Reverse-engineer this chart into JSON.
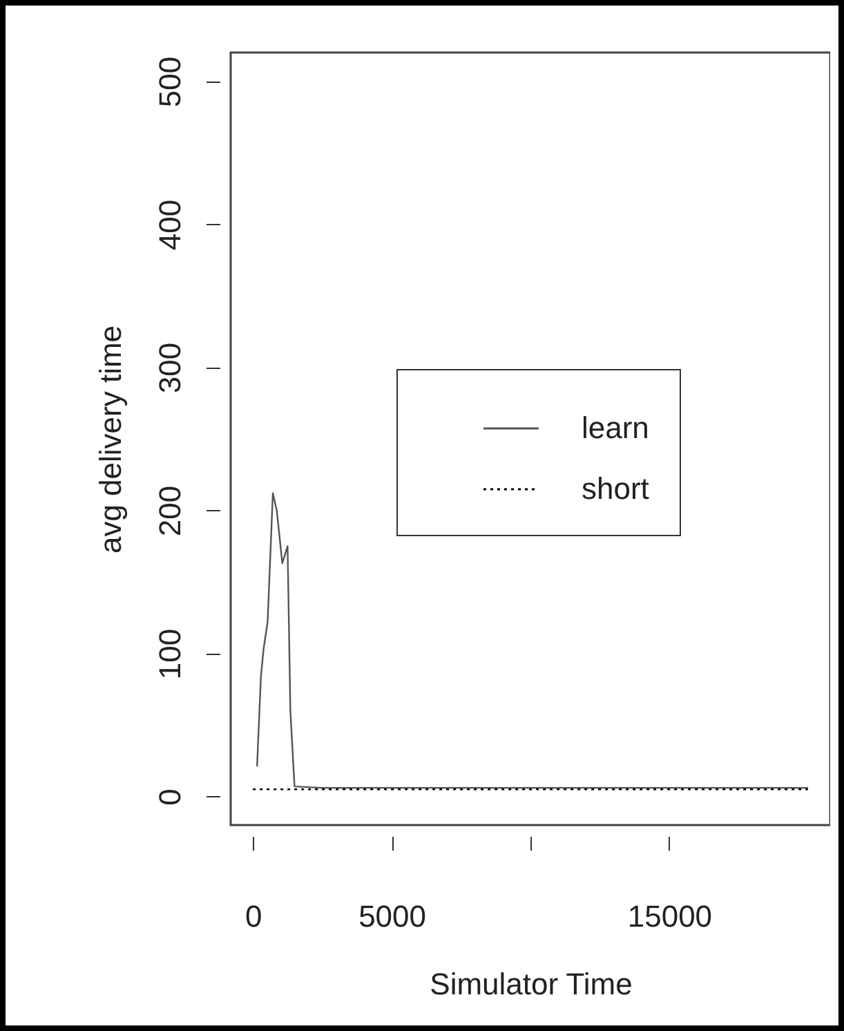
{
  "chart_data": {
    "type": "line",
    "xlabel": "Simulator Time",
    "ylabel": "avg delivery time",
    "xlim": [
      -800,
      20800
    ],
    "ylim": [
      -20,
      520
    ],
    "xticks": [
      0,
      5000,
      {
        "value": 10000,
        "label": null
      },
      15000
    ],
    "yticks": [
      0,
      100,
      200,
      300,
      400,
      500
    ],
    "grid": false,
    "legend": "right",
    "series": [
      {
        "name": "learn",
        "color": "#555555",
        "line_style": "solid",
        "x": [
          150,
          290,
          385,
          530,
          720,
          860,
          1060,
          1250,
          1350,
          1500,
          2500,
          5000,
          7500,
          10000,
          12500,
          15000,
          17500,
          20000
        ],
        "values": [
          21,
          84,
          103,
          122,
          212,
          200,
          163,
          175,
          60,
          7,
          6,
          6,
          6,
          6,
          6,
          6,
          6,
          6
        ]
      },
      {
        "name": "short",
        "color": "#000000",
        "line_style": "dotted",
        "x": [
          0,
          20000
        ],
        "values": [
          5,
          5
        ]
      }
    ]
  }
}
